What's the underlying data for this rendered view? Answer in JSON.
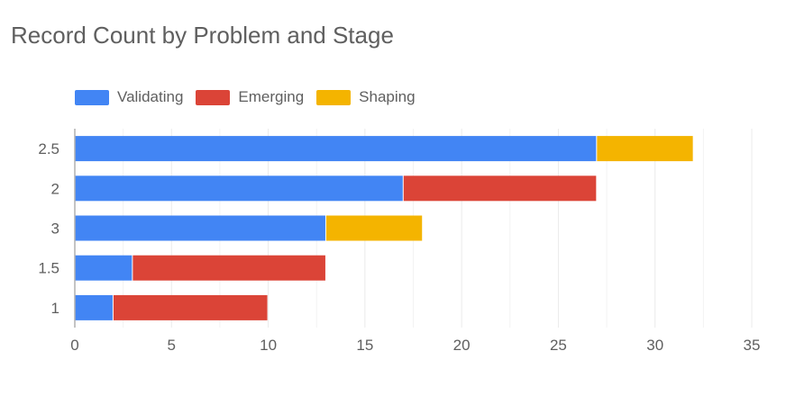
{
  "chart_data": {
    "type": "bar",
    "orientation": "horizontal",
    "stacked": true,
    "title": "Record Count by Problem and Stage",
    "xlabel": "",
    "ylabel": "",
    "categories": [
      "2.5",
      "2",
      "3",
      "1.5",
      "1"
    ],
    "series": [
      {
        "name": "Validating",
        "color": "#4285f4",
        "values": [
          27,
          17,
          13,
          3,
          2
        ]
      },
      {
        "name": "Emerging",
        "color": "#db4437",
        "values": [
          0,
          10,
          0,
          10,
          8
        ]
      },
      {
        "name": "Shaping",
        "color": "#f4b400",
        "values": [
          5,
          0,
          5,
          0,
          0
        ]
      }
    ],
    "xlim": [
      0,
      35
    ],
    "x_ticks": [
      "0",
      "5",
      "10",
      "15",
      "20",
      "25",
      "30",
      "35"
    ],
    "grid": true,
    "legend_position": "top-left"
  }
}
